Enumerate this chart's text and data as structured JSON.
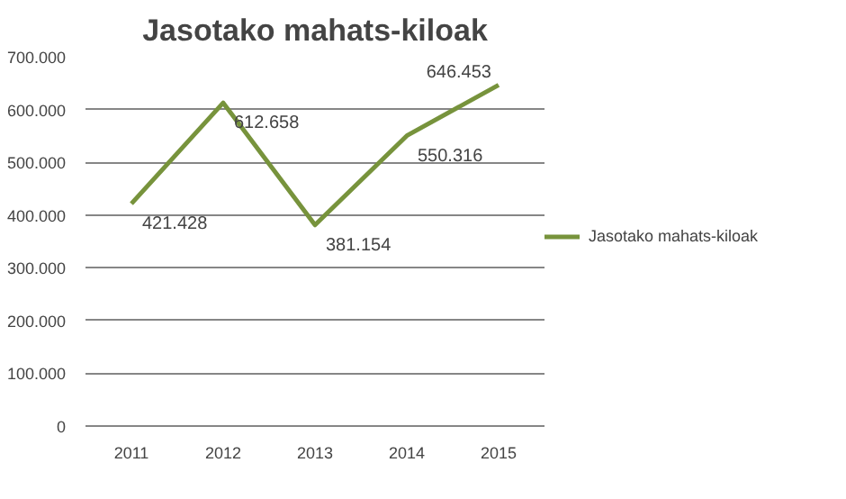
{
  "chart_data": {
    "type": "line",
    "title": "Jasotako mahats-kiloak",
    "categories": [
      "2011",
      "2012",
      "2013",
      "2014",
      "2015"
    ],
    "series": [
      {
        "name": "Jasotako mahats-kiloak",
        "color": "#77933c",
        "values": [
          421428,
          612658,
          381154,
          550316,
          646453
        ],
        "value_labels": [
          "421.428",
          "612.658",
          "381.154",
          "550.316",
          "646.453"
        ]
      }
    ],
    "ylim": [
      0,
      700000
    ],
    "yticks": [
      {
        "value": 0,
        "label": "0"
      },
      {
        "value": 100000,
        "label": "100.000"
      },
      {
        "value": 200000,
        "label": "200.000"
      },
      {
        "value": 300000,
        "label": "300.000"
      },
      {
        "value": 400000,
        "label": "400.000"
      },
      {
        "value": 500000,
        "label": "500.000"
      },
      {
        "value": 600000,
        "label": "600.000"
      },
      {
        "value": 700000,
        "label": "700.000"
      }
    ],
    "grid": "y",
    "legend": "right",
    "marker": "none",
    "line_style": "solid"
  }
}
